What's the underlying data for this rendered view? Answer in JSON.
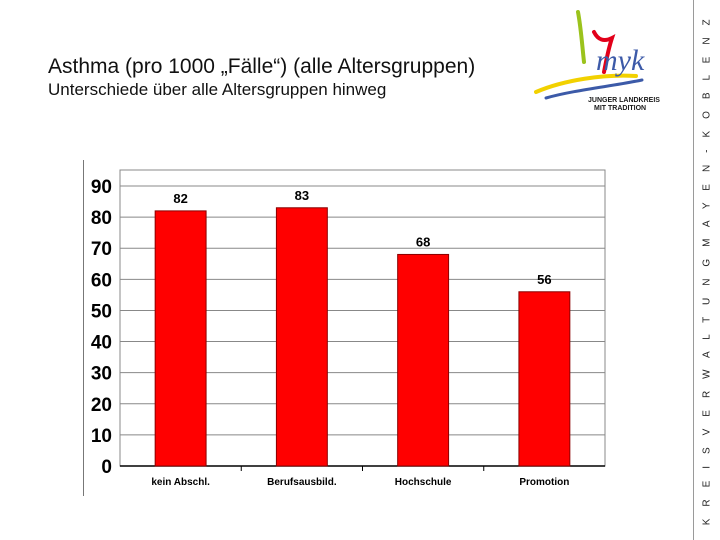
{
  "header": {
    "title": "Asthma (pro 1000 „Fälle“) (alle Altersgruppen)",
    "subtitle": "Unterschiede über alle Altersgruppen hinweg"
  },
  "sidebar": {
    "text": "K R E I S V E R W A L T U N G   M A Y E N - K O B L E N Z"
  },
  "logo": {
    "wordmark": "myk",
    "line1": "JUNGER LANDKREIS",
    "line2": "MIT TRADITION"
  },
  "colors": {
    "bar": "#ff0000",
    "bar_edge": "#8b0000",
    "plot_background": "#ffffff",
    "grid": "#888888",
    "logo_green": "#9bc31c",
    "logo_yellow": "#f2d100",
    "logo_red": "#e2001a",
    "logo_blue": "#3c5aa8"
  },
  "chart_data": {
    "type": "bar",
    "categories": [
      "kein Abschl.",
      "Berufsausbild.",
      "Hochschule",
      "Promotion"
    ],
    "values": [
      82,
      83,
      68,
      56
    ],
    "data_labels": [
      "82",
      "83",
      "68",
      "56"
    ],
    "yticks": [
      "0",
      "10",
      "20",
      "30",
      "40",
      "50",
      "60",
      "70",
      "80",
      "90"
    ],
    "ylim": [
      0,
      90
    ],
    "grid": true,
    "legend": "none"
  }
}
